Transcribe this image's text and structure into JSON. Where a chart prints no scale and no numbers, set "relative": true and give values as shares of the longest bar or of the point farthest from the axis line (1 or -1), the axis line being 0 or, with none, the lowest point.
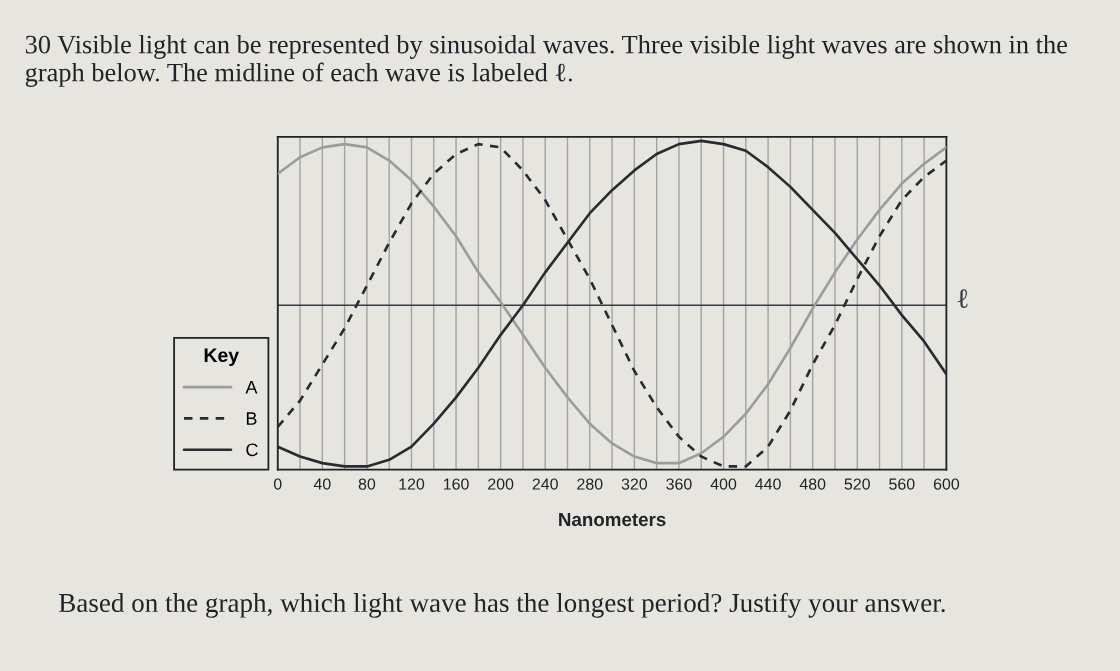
{
  "chart_data": {
    "type": "line",
    "title": "30 Visible light can be represented by sinusoidal waves. Three visible light waves are shown in the graph below. The midline of each wave is labeled ℓ.",
    "xlabel": "Nanometers",
    "legend_title": "Key",
    "annotations": [
      "Based on the graph, which light wave has the longest period? Justify your answer."
    ],
    "x": [
      0,
      20,
      40,
      60,
      80,
      100,
      120,
      140,
      160,
      180,
      200,
      220,
      240,
      260,
      280,
      300,
      320,
      340,
      360,
      380,
      400,
      420,
      440,
      460,
      480,
      500,
      520,
      540,
      560,
      580,
      600
    ],
    "relative": true,
    "series": [
      {
        "name": "A",
        "color": "#9c9c9c",
        "line_style": "solid",
        "values": [
          0.9,
          0.95,
          0.98,
          0.99,
          0.98,
          0.94,
          0.88,
          0.8,
          0.71,
          0.6,
          0.51,
          0.41,
          0.31,
          0.22,
          0.14,
          0.08,
          0.04,
          0.02,
          0.02,
          0.05,
          0.1,
          0.17,
          0.26,
          0.37,
          0.49,
          0.6,
          0.7,
          0.79,
          0.87,
          0.93,
          0.98
        ]
      },
      {
        "name": "B",
        "color": "#2a2a33",
        "line_style": "dashed",
        "values": [
          0.13,
          0.21,
          0.32,
          0.43,
          0.56,
          0.69,
          0.81,
          0.9,
          0.96,
          0.99,
          0.98,
          0.91,
          0.82,
          0.7,
          0.58,
          0.44,
          0.3,
          0.19,
          0.1,
          0.04,
          0.01,
          0.01,
          0.07,
          0.18,
          0.32,
          0.44,
          0.58,
          0.71,
          0.82,
          0.89,
          0.94
        ]
      },
      {
        "name": "C",
        "color": "#2a2a33",
        "line_style": "solid",
        "values": [
          0.07,
          0.04,
          0.02,
          0.01,
          0.01,
          0.03,
          0.07,
          0.14,
          0.22,
          0.31,
          0.41,
          0.5,
          0.6,
          0.69,
          0.78,
          0.85,
          0.91,
          0.96,
          0.99,
          1.0,
          0.99,
          0.97,
          0.92,
          0.86,
          0.79,
          0.72,
          0.64,
          0.56,
          0.47,
          0.39,
          0.29
        ]
      }
    ],
    "ref_lines": [
      {
        "axis": "y",
        "value": 0.5,
        "label": "ℓ",
        "color": "#3a3a44"
      }
    ],
    "xlim": [
      0,
      600
    ],
    "xticks": [
      0,
      {
        "value": 20,
        "label": null
      },
      40,
      {
        "value": 60,
        "label": null
      },
      80,
      {
        "value": 100,
        "label": null
      },
      120,
      {
        "value": 140,
        "label": null
      },
      160,
      {
        "value": 180,
        "label": null
      },
      200,
      {
        "value": 220,
        "label": null
      },
      240,
      {
        "value": 260,
        "label": null
      },
      280,
      {
        "value": 300,
        "label": null
      },
      320,
      {
        "value": 340,
        "label": null
      },
      360,
      {
        "value": 380,
        "label": null
      },
      400,
      {
        "value": 420,
        "label": null
      },
      440,
      {
        "value": 460,
        "label": null
      },
      480,
      {
        "value": 500,
        "label": null
      },
      520,
      {
        "value": 540,
        "label": null
      },
      560,
      {
        "value": 580,
        "label": null
      },
      600
    ],
    "grid": "x",
    "legend": "bottom left"
  }
}
